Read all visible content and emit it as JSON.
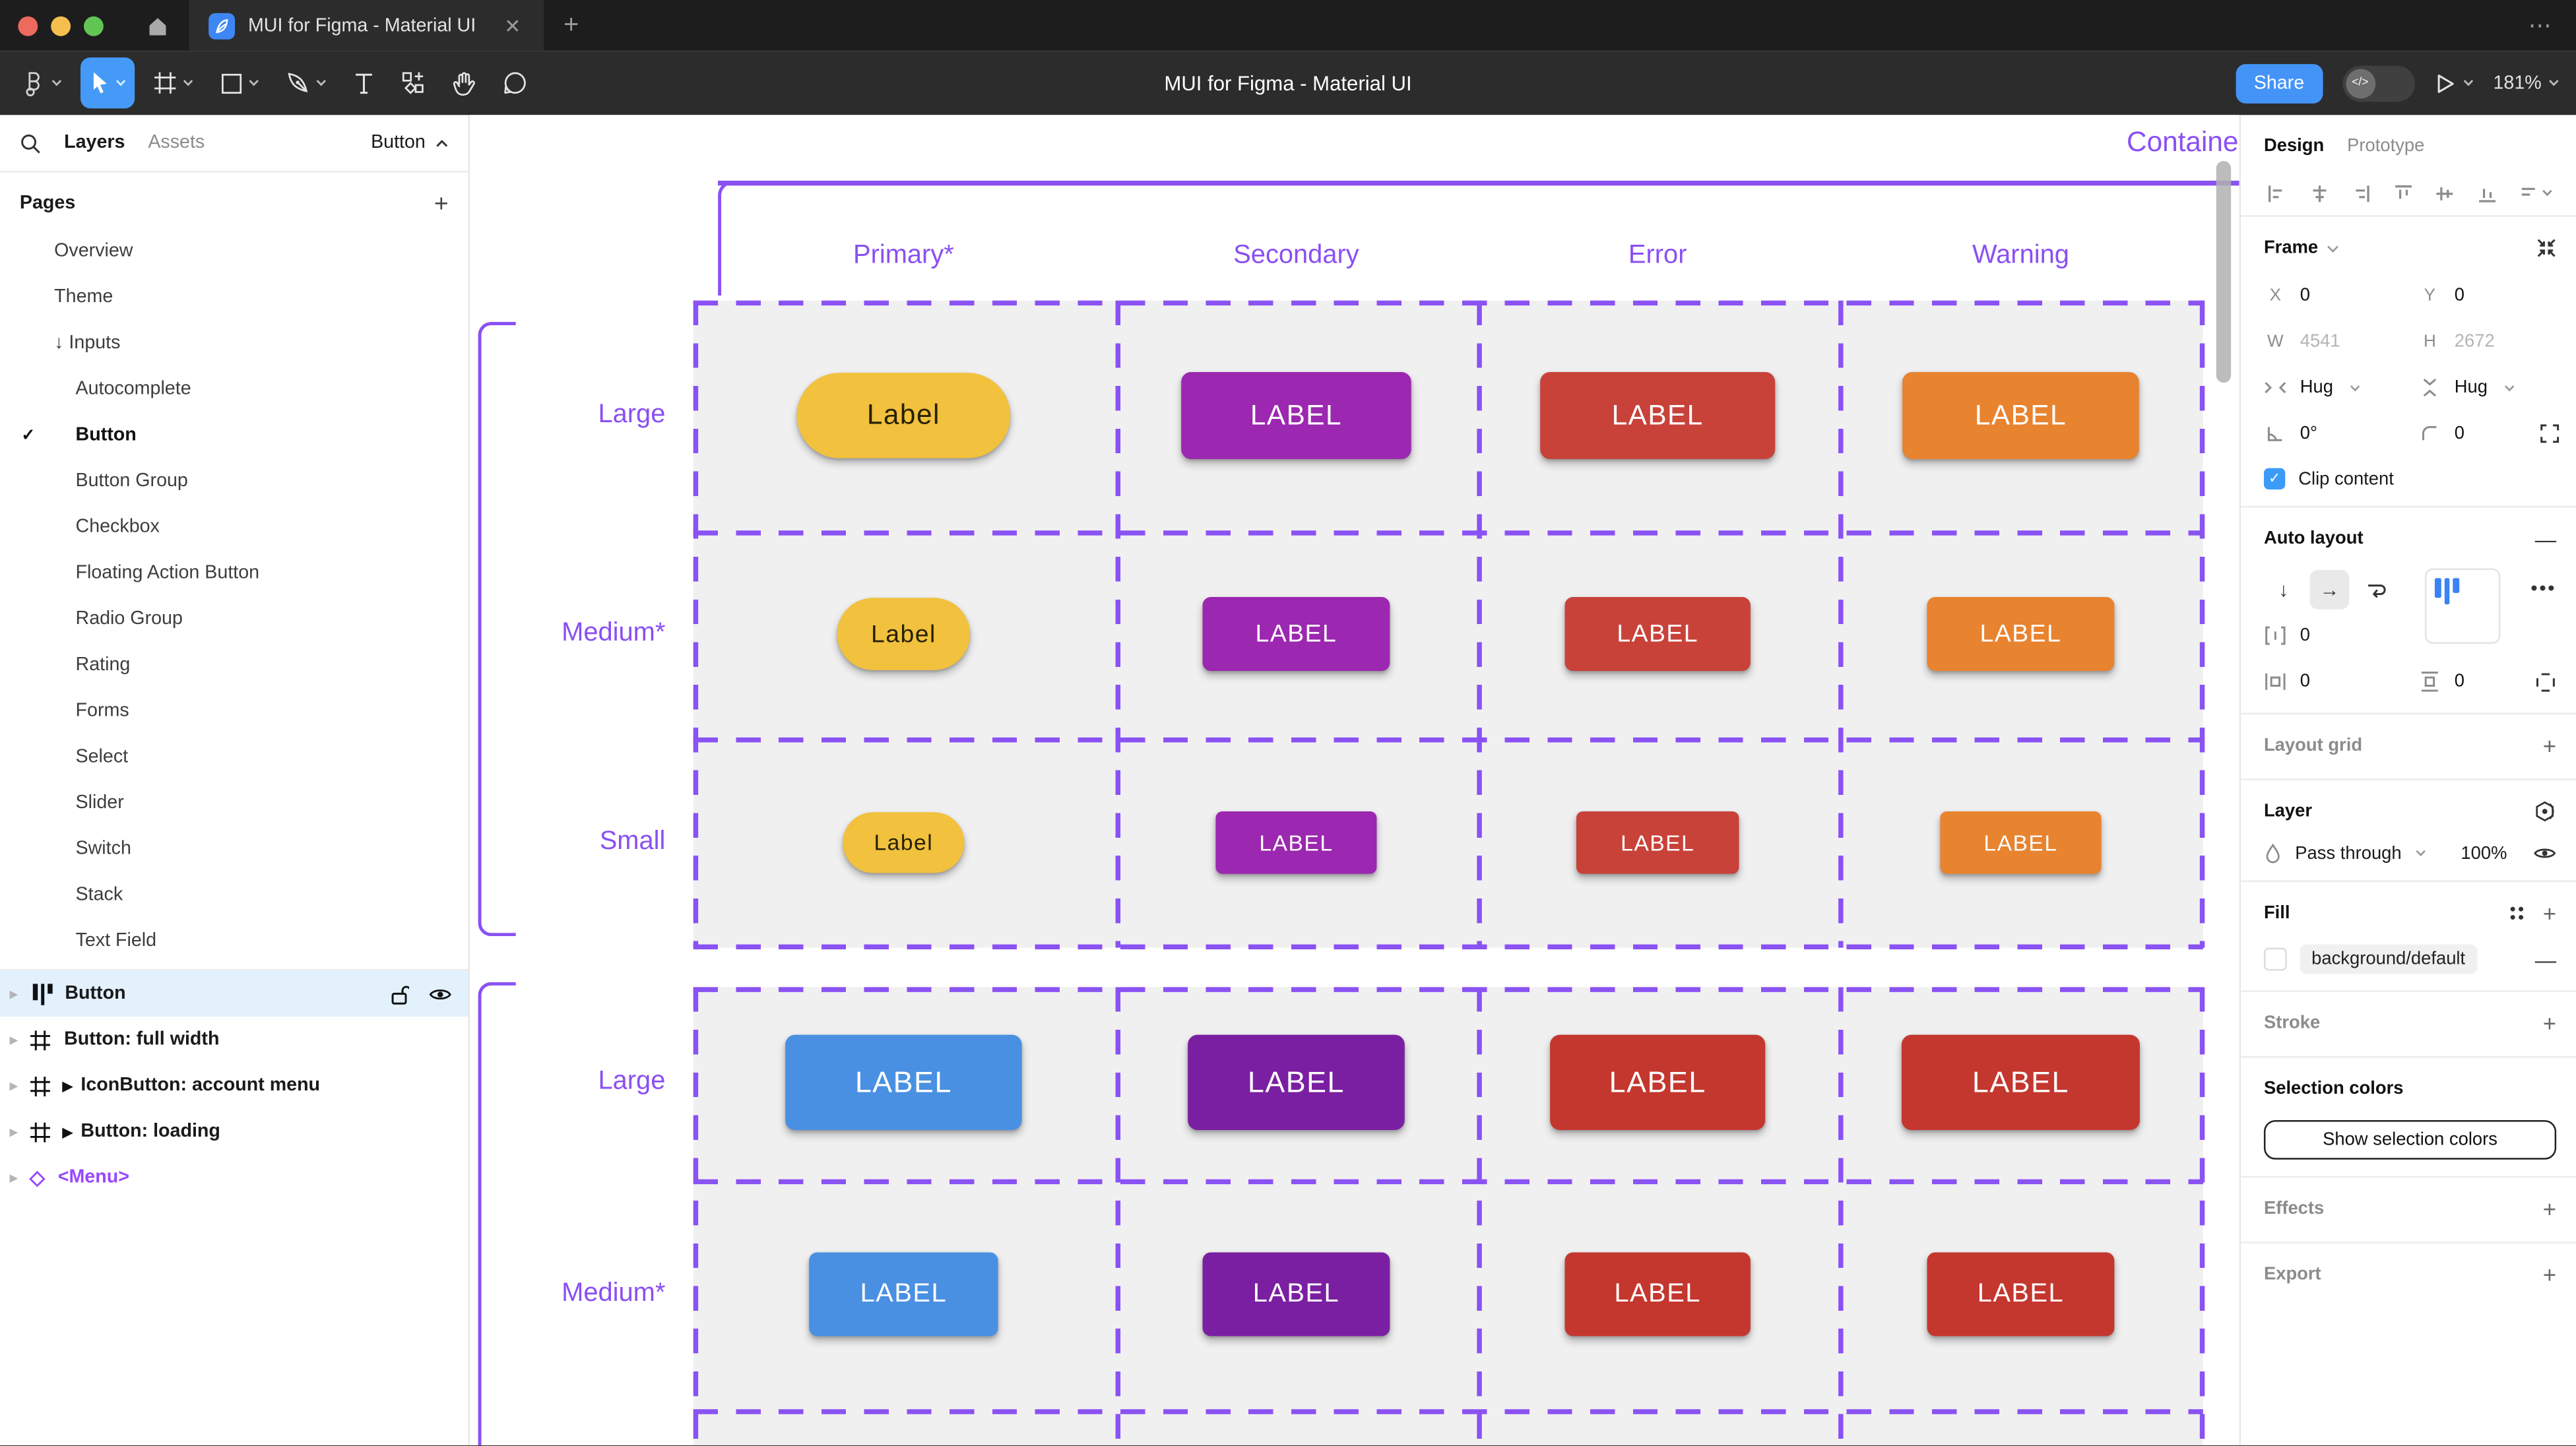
{
  "window": {
    "tab_title": "MUI for Figma - Material UI",
    "tab_close": "✕",
    "new_tab": "+",
    "overflow": "⋯",
    "traffic_colors": {
      "close": "#ec6a5e",
      "minimize": "#f4bf4f",
      "zoom": "#61c554"
    }
  },
  "toolbar": {
    "title": "MUI for Figma - Material UI",
    "share_label": "Share",
    "dev_toggle_glyph": "</>",
    "zoom_level": "181%",
    "selected_tool": "move",
    "accent": "#459af7"
  },
  "sidebar": {
    "tabs": {
      "layers": "Layers",
      "assets": "Assets"
    },
    "page_indicator": "Button",
    "pages_header": "Pages",
    "pages": [
      {
        "label": "Overview",
        "indent": 1
      },
      {
        "label": "Theme",
        "indent": 1
      },
      {
        "label": "Inputs",
        "indent": 1,
        "prefix": "↓ "
      },
      {
        "label": "Autocomplete",
        "indent": 2
      },
      {
        "label": "Button",
        "indent": 2,
        "active": true,
        "checked": true
      },
      {
        "label": "Button Group",
        "indent": 2
      },
      {
        "label": "Checkbox",
        "indent": 2
      },
      {
        "label": "Floating Action Button",
        "indent": 2
      },
      {
        "label": "Radio Group",
        "indent": 2
      },
      {
        "label": "Rating",
        "indent": 2
      },
      {
        "label": "Forms",
        "indent": 2
      },
      {
        "label": "Select",
        "indent": 2
      },
      {
        "label": "Slider",
        "indent": 2
      },
      {
        "label": "Switch",
        "indent": 2
      },
      {
        "label": "Stack",
        "indent": 2
      },
      {
        "label": "Text Field",
        "indent": 2
      }
    ],
    "layers": [
      {
        "name": "Button",
        "icon": "auto-layout",
        "selected": true
      },
      {
        "name": "Button: full width",
        "icon": "frame"
      },
      {
        "name": "IconButton: account menu",
        "icon": "frame",
        "component_marker": true
      },
      {
        "name": "Button: loading",
        "icon": "frame",
        "component_marker": true
      },
      {
        "name": "<Menu>",
        "icon": "component",
        "purple": true
      }
    ]
  },
  "canvas": {
    "frame_title": "Contained",
    "accent": "#8a52f2",
    "group_fill": "#f0f0f1",
    "columns": [
      "Primary*",
      "Secondary",
      "Error",
      "Warning"
    ],
    "rows": [
      {
        "label": "Large",
        "group": 1,
        "buttons": [
          {
            "text": "Label",
            "bg": "#f2c13d",
            "fg": "#262103",
            "w": 130,
            "h": 52,
            "r": 26,
            "fs": 17
          },
          {
            "text": "LABEL",
            "bg": "#9c27b0",
            "fg": "#ffffff",
            "w": 140,
            "h": 53,
            "r": 6,
            "fs": 17
          },
          {
            "text": "LABEL",
            "bg": "#c8423a",
            "fg": "#ffffff",
            "w": 143,
            "h": 53,
            "r": 6,
            "fs": 17
          },
          {
            "text": "LABEL",
            "bg": "#e8832f",
            "fg": "#ffffff",
            "w": 144,
            "h": 53,
            "r": 6,
            "fs": 17
          }
        ]
      },
      {
        "label": "Medium*",
        "group": 1,
        "buttons": [
          {
            "text": "Label",
            "bg": "#f2c13d",
            "fg": "#262103",
            "w": 81,
            "h": 44,
            "r": 22,
            "fs": 15
          },
          {
            "text": "LABEL",
            "bg": "#9c27b0",
            "fg": "#ffffff",
            "w": 114,
            "h": 45,
            "r": 5,
            "fs": 15
          },
          {
            "text": "LABEL",
            "bg": "#c8423a",
            "fg": "#ffffff",
            "w": 113,
            "h": 45,
            "r": 5,
            "fs": 15
          },
          {
            "text": "LABEL",
            "bg": "#e8832f",
            "fg": "#ffffff",
            "w": 114,
            "h": 45,
            "r": 5,
            "fs": 15
          }
        ]
      },
      {
        "label": "Small",
        "group": 1,
        "buttons": [
          {
            "text": "Label",
            "bg": "#f2c13d",
            "fg": "#262103",
            "w": 74,
            "h": 37,
            "r": 19,
            "fs": 13.5
          },
          {
            "text": "LABEL",
            "bg": "#9c27b0",
            "fg": "#ffffff",
            "w": 98,
            "h": 38,
            "r": 4,
            "fs": 13.5
          },
          {
            "text": "LABEL",
            "bg": "#c8423a",
            "fg": "#ffffff",
            "w": 99,
            "h": 38,
            "r": 4,
            "fs": 13.5
          },
          {
            "text": "LABEL",
            "bg": "#e8832f",
            "fg": "#ffffff",
            "w": 98,
            "h": 38,
            "r": 4,
            "fs": 13.5
          }
        ]
      },
      {
        "label": "Large",
        "group": 2,
        "buttons": [
          {
            "text": "LABEL",
            "bg": "#4a90e2",
            "fg": "#ffffff",
            "w": 144,
            "h": 58,
            "r": 6,
            "fs": 18
          },
          {
            "text": "LABEL",
            "bg": "#7b1fa2",
            "fg": "#ffffff",
            "w": 132,
            "h": 58,
            "r": 6,
            "fs": 18
          },
          {
            "text": "LABEL",
            "bg": "#c4372e",
            "fg": "#ffffff",
            "w": 131,
            "h": 58,
            "r": 6,
            "fs": 18
          },
          {
            "text": "LABEL",
            "bg": "#c4372e",
            "fg": "#ffffff",
            "w": 145,
            "h": 58,
            "r": 6,
            "fs": 18
          }
        ]
      },
      {
        "label": "Medium*",
        "group": 2,
        "buttons": [
          {
            "text": "LABEL",
            "bg": "#4a90e2",
            "fg": "#ffffff",
            "w": 115,
            "h": 51,
            "r": 5,
            "fs": 16
          },
          {
            "text": "LABEL",
            "bg": "#7b1fa2",
            "fg": "#ffffff",
            "w": 114,
            "h": 51,
            "r": 5,
            "fs": 16
          },
          {
            "text": "LABEL",
            "bg": "#c4372e",
            "fg": "#ffffff",
            "w": 113,
            "h": 51,
            "r": 5,
            "fs": 16
          },
          {
            "text": "LABEL",
            "bg": "#c4372e",
            "fg": "#ffffff",
            "w": 114,
            "h": 51,
            "r": 5,
            "fs": 16
          }
        ]
      }
    ]
  },
  "inspector": {
    "tabs": {
      "design": "Design",
      "prototype": "Prototype"
    },
    "frame": {
      "section": "Frame",
      "x_label": "X",
      "x": "0",
      "y_label": "Y",
      "y": "0",
      "w_label": "W",
      "w": "4541",
      "h_label": "H",
      "h": "2672",
      "hug_h": "Hug",
      "hug_v": "Hug",
      "rotation": "0°",
      "radius": "0",
      "clip": "Clip content",
      "check": "✓"
    },
    "auto_layout": {
      "section": "Auto layout",
      "gap": "0",
      "padding_h": "0",
      "padding_v": "0",
      "dir_down": "↓",
      "dir_right": "→",
      "more": "•••",
      "remove": "—"
    },
    "layout_grid": {
      "section": "Layout grid"
    },
    "layer": {
      "section": "Layer",
      "blend": "Pass through",
      "opacity": "100%"
    },
    "fill": {
      "section": "Fill",
      "token": "background/default",
      "remove": "—"
    },
    "stroke": {
      "section": "Stroke"
    },
    "selection_colors": {
      "section": "Selection colors",
      "button": "Show selection colors"
    },
    "effects": {
      "section": "Effects"
    },
    "export": {
      "section": "Export"
    }
  }
}
